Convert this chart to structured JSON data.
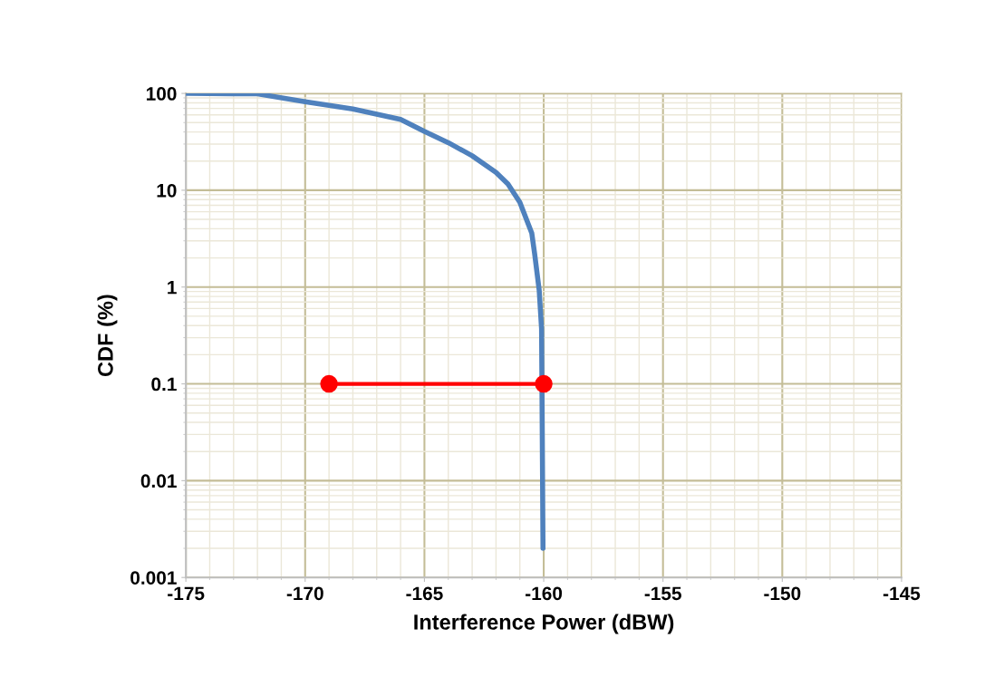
{
  "chart_data": {
    "type": "line",
    "xlabel": "Interference Power (dBW)",
    "ylabel": "CDF (%)",
    "log": "y",
    "grid": true,
    "xlim": [
      -175,
      -145
    ],
    "xticks": [
      -175,
      -170,
      -165,
      -160,
      -155,
      -150,
      -145
    ],
    "ylim": [
      0.001,
      100
    ],
    "yticks": [
      {
        "value": 0.001,
        "label": "0.001"
      },
      {
        "value": 0.01,
        "label": "0.01"
      },
      {
        "value": 0.1,
        "label": "0.1"
      },
      {
        "value": 1,
        "label": "1"
      },
      {
        "value": 10,
        "label": "10"
      },
      {
        "value": 100,
        "label": "100"
      }
    ],
    "series": [
      {
        "color": "#4f81bd",
        "marker": "none",
        "x": [
          -175,
          -172,
          -170,
          -168,
          -166,
          -165,
          -164,
          -163,
          -162,
          -161.5,
          -161,
          -160.5,
          -160.38,
          -160.19,
          -160.09,
          -160.03
        ],
        "values": [
          100,
          99,
          82,
          69,
          54,
          40.5,
          31,
          22.7,
          15.3,
          11.6,
          7.5,
          3.6,
          2.2,
          0.93,
          0.37,
          0.002
        ]
      },
      {
        "color": "#ff0000",
        "marker": "circle",
        "x": [
          -169,
          -160
        ],
        "values": [
          0.1,
          0.1
        ]
      }
    ]
  }
}
